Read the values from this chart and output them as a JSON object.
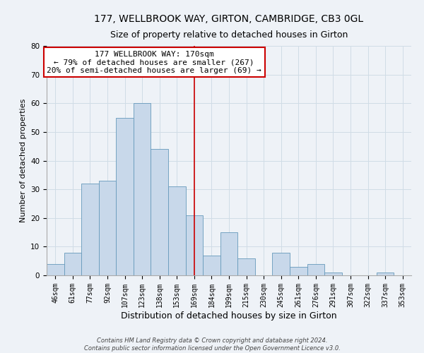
{
  "title": "177, WELLBROOK WAY, GIRTON, CAMBRIDGE, CB3 0GL",
  "subtitle": "Size of property relative to detached houses in Girton",
  "xlabel": "Distribution of detached houses by size in Girton",
  "ylabel": "Number of detached properties",
  "bar_labels": [
    "46sqm",
    "61sqm",
    "77sqm",
    "92sqm",
    "107sqm",
    "123sqm",
    "138sqm",
    "153sqm",
    "169sqm",
    "184sqm",
    "199sqm",
    "215sqm",
    "230sqm",
    "245sqm",
    "261sqm",
    "276sqm",
    "291sqm",
    "307sqm",
    "322sqm",
    "337sqm",
    "353sqm"
  ],
  "bar_values": [
    4,
    8,
    32,
    33,
    55,
    60,
    44,
    31,
    21,
    7,
    15,
    6,
    0,
    8,
    3,
    4,
    1,
    0,
    0,
    1,
    0
  ],
  "bar_color": "#c8d8ea",
  "bar_edge_color": "#6699bb",
  "vline_x": 8,
  "vline_color": "#cc0000",
  "annotation_box_text": "177 WELLBROOK WAY: 170sqm\n← 79% of detached houses are smaller (267)\n20% of semi-detached houses are larger (69) →",
  "ylim": [
    0,
    80
  ],
  "yticks": [
    0,
    10,
    20,
    30,
    40,
    50,
    60,
    70,
    80
  ],
  "grid_color": "#d0dce6",
  "bg_color": "#eef2f7",
  "footer_text": "Contains HM Land Registry data © Crown copyright and database right 2024.\nContains public sector information licensed under the Open Government Licence v3.0.",
  "title_fontsize": 10,
  "subtitle_fontsize": 9,
  "xlabel_fontsize": 9,
  "ylabel_fontsize": 8,
  "tick_fontsize": 7,
  "annotation_fontsize": 8,
  "footer_fontsize": 6
}
